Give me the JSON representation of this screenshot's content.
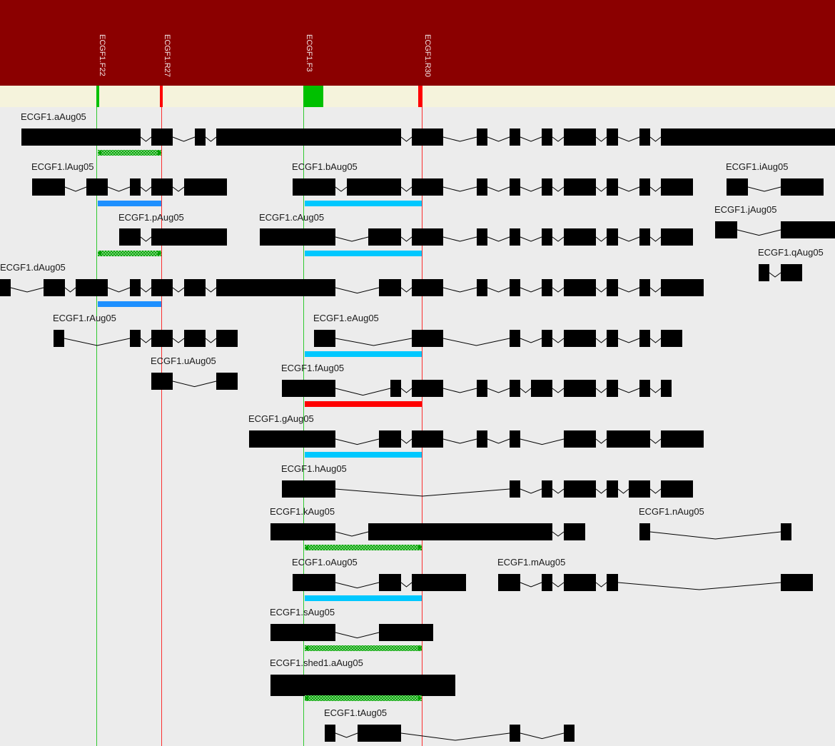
{
  "colors": {
    "header": "#8b0000",
    "track": "#f5f3dc",
    "background": "#ececec",
    "exon": "#000000",
    "forward_primer": "#00c000",
    "reverse_primer": "#ff0000",
    "amplicon_blue": "#00c8ff",
    "amplicon_dark_blue": "#1e90ff",
    "amplicon_red": "#ff0000",
    "amplicon_green": "#00c000"
  },
  "primers": [
    {
      "name": "ECGF1.F22",
      "direction": "forward"
    },
    {
      "name": "ECGF1.R27",
      "direction": "reverse"
    },
    {
      "name": "ECGF1.F3",
      "direction": "forward"
    },
    {
      "name": "ECGF1.R30",
      "direction": "reverse"
    }
  ],
  "transcripts": [
    {
      "name": "ECGF1.aAug05",
      "amplicon": "green"
    },
    {
      "name": "ECGF1.lAug05",
      "amplicon": "darkblue"
    },
    {
      "name": "ECGF1.bAug05",
      "amplicon": "blue"
    },
    {
      "name": "ECGF1.iAug05"
    },
    {
      "name": "ECGF1.pAug05",
      "amplicon": "green"
    },
    {
      "name": "ECGF1.cAug05",
      "amplicon": "blue"
    },
    {
      "name": "ECGF1.jAug05"
    },
    {
      "name": "ECGF1.qAug05"
    },
    {
      "name": "ECGF1.dAug05",
      "amplicon": "darkblue"
    },
    {
      "name": "ECGF1.rAug05"
    },
    {
      "name": "ECGF1.eAug05",
      "amplicon": "blue"
    },
    {
      "name": "ECGF1.uAug05"
    },
    {
      "name": "ECGF1.fAug05",
      "amplicon": "red"
    },
    {
      "name": "ECGF1.gAug05",
      "amplicon": "blue"
    },
    {
      "name": "ECGF1.hAug05"
    },
    {
      "name": "ECGF1.kAug05",
      "amplicon": "green"
    },
    {
      "name": "ECGF1.nAug05"
    },
    {
      "name": "ECGF1.oAug05",
      "amplicon": "blue"
    },
    {
      "name": "ECGF1.mAug05"
    },
    {
      "name": "ECGF1.sAug05",
      "amplicon": "green"
    },
    {
      "name": "ECGF1.shed1.aAug05",
      "amplicon": "green"
    },
    {
      "name": "ECGF1.tAug05"
    }
  ]
}
